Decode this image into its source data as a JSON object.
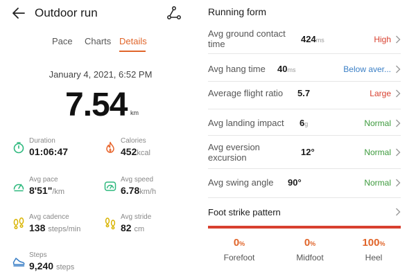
{
  "header": {
    "title": "Outdoor run"
  },
  "tabs": [
    {
      "label": "Pace"
    },
    {
      "label": "Charts"
    },
    {
      "label": "Details"
    }
  ],
  "active_tab": "Details",
  "summary": {
    "date": "January 4, 2021, 6:52 PM",
    "distance": "7.54",
    "distance_unit": "km"
  },
  "stats": {
    "duration": {
      "label": "Duration",
      "value": "01:06:47",
      "unit": ""
    },
    "calories": {
      "label": "Calories",
      "value": "452",
      "unit": "kcal"
    },
    "pace": {
      "label": "Avg pace",
      "value": "8'51\"",
      "unit": "/km"
    },
    "speed": {
      "label": "Avg speed",
      "value": "6.78",
      "unit": "km/h"
    },
    "cadence": {
      "label": "Avg cadence",
      "value": "138",
      "unit": "steps/min"
    },
    "stride": {
      "label": "Avg stride",
      "value": "82",
      "unit": "cm"
    },
    "steps": {
      "label": "Steps",
      "value": "9,240",
      "unit": "steps"
    }
  },
  "running_form": {
    "title": "Running form",
    "rows": [
      {
        "label_line1": "Avg ground contact",
        "label_line2": "time",
        "value": "424",
        "unit": "ms",
        "status": "High"
      },
      {
        "label_line1": "Avg hang time",
        "label_line2": "",
        "value": "40",
        "unit": "ms",
        "status": "Below aver..."
      },
      {
        "label_line1": "Average flight ratio",
        "label_line2": "",
        "value": "5.7",
        "unit": "",
        "status": "Large"
      },
      {
        "label_line1": "Avg landing impact",
        "label_line2": "",
        "value": "6",
        "unit": "g",
        "status": "Normal"
      },
      {
        "label_line1": "Avg eversion",
        "label_line2": "excursion",
        "value": "12°",
        "unit": "",
        "status": "Normal"
      },
      {
        "label_line1": "Avg swing angle",
        "label_line2": "",
        "value": "90°",
        "unit": "",
        "status": "Normal"
      }
    ],
    "foot_strike": {
      "label": "Foot strike pattern",
      "items": [
        {
          "pct": "0",
          "name": "Forefoot"
        },
        {
          "pct": "0",
          "name": "Midfoot"
        },
        {
          "pct": "100",
          "name": "Heel"
        }
      ],
      "pct_unit": "%"
    }
  },
  "colors": {
    "accent": "#e0652a",
    "high": "#d8402f",
    "below": "#3a7fc6",
    "normal": "#3c9a3c"
  }
}
